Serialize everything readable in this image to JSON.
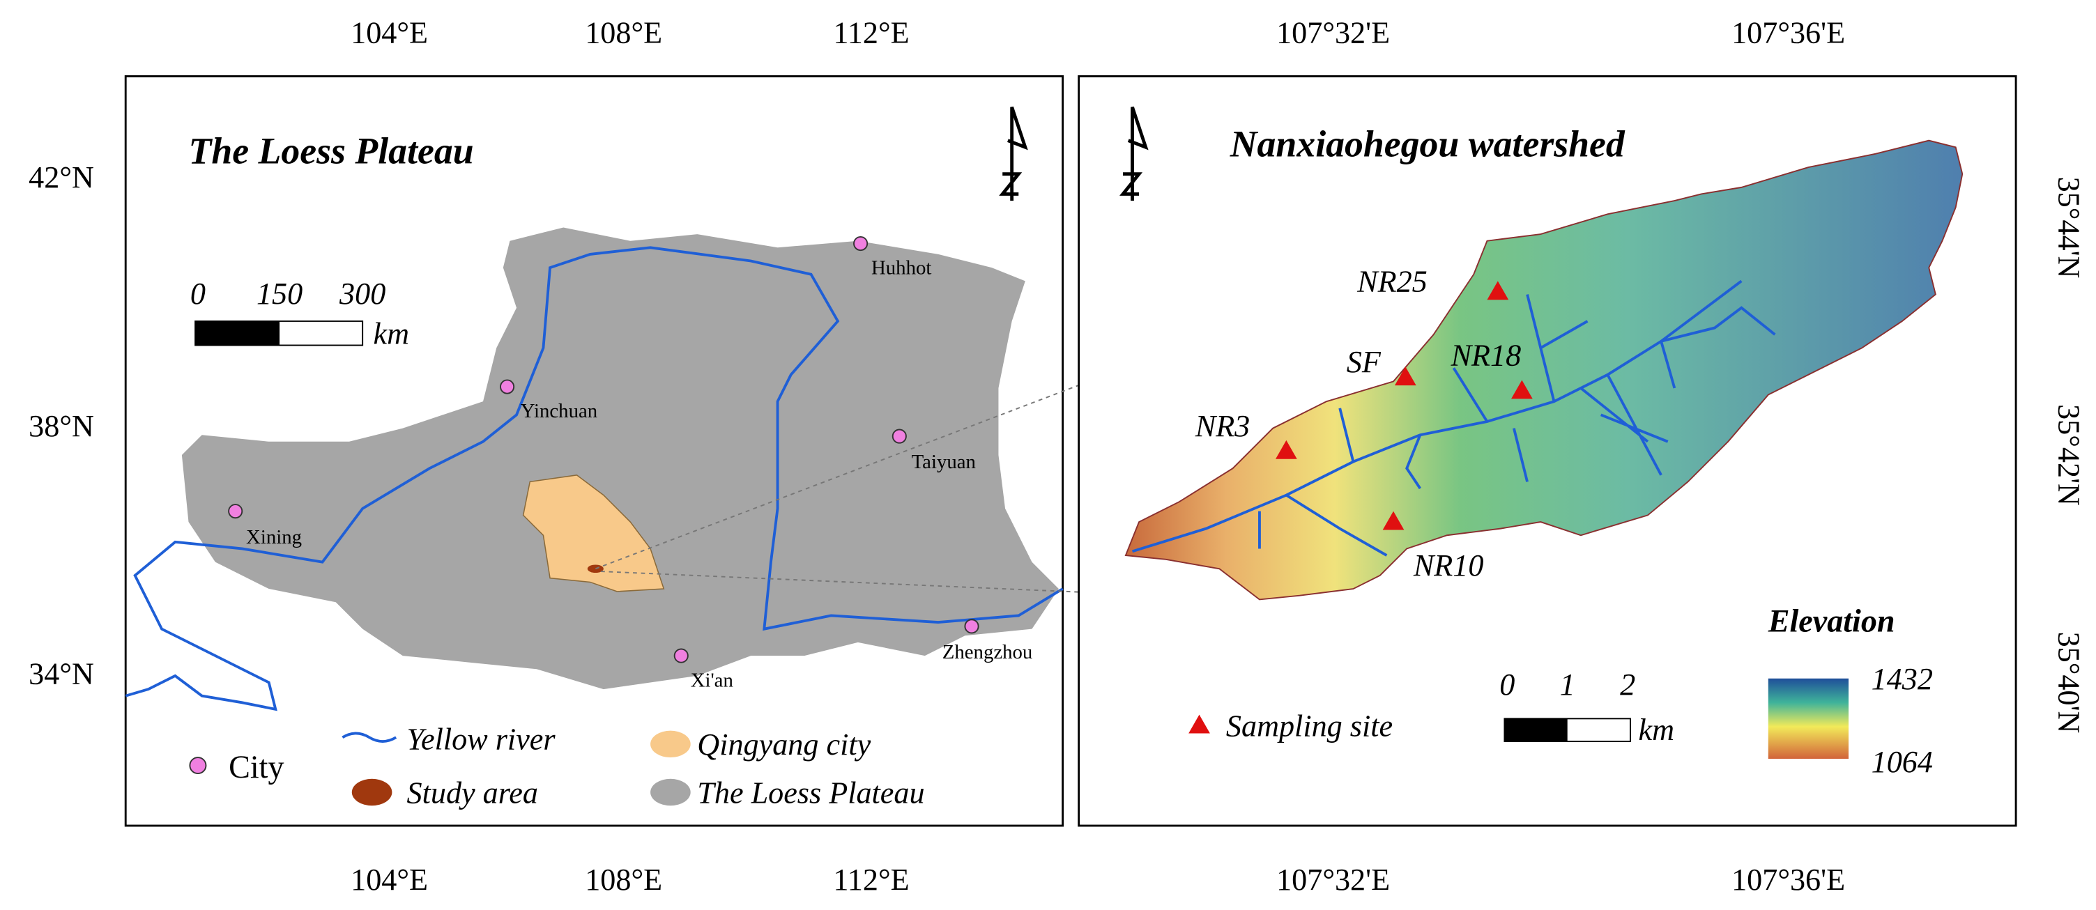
{
  "left_map": {
    "title": "The Loess Plateau",
    "x_ticks": [
      "104°E",
      "108°E",
      "112°E"
    ],
    "y_ticks": [
      "42°N",
      "38°N",
      "34°N"
    ],
    "scale_bar": {
      "labels": [
        "0",
        "150",
        "300"
      ],
      "unit": "km"
    },
    "cities": [
      "Huhhot",
      "Yinchuan",
      "Taiyuan",
      "Xining",
      "Xi'an",
      "Zhengzhou"
    ],
    "legend": [
      "City",
      "Yellow river",
      "Study area",
      "Qingyang city",
      "The Loess Plateau"
    ]
  },
  "right_map": {
    "title": "Nanxiaohegou watershed",
    "x_ticks": [
      "107°32'E",
      "107°36'E"
    ],
    "y_ticks": [
      "35°44'N",
      "35°42'N",
      "35°40'N"
    ],
    "sites": [
      "NR25",
      "SF",
      "NR18",
      "NR3",
      "NR10"
    ],
    "legend": "Sampling site",
    "scale_bar": {
      "labels": [
        "0",
        "1",
        "2"
      ],
      "unit": "km"
    },
    "elevation": {
      "title": "Elevation",
      "max": "1432",
      "min": "1064"
    }
  }
}
